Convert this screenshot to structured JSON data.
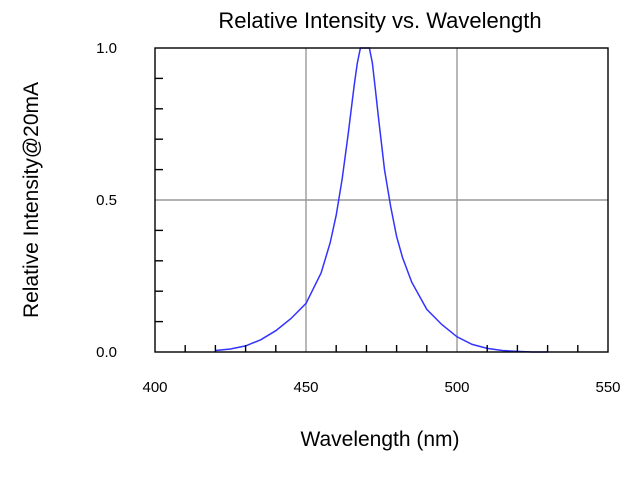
{
  "chart_data": {
    "type": "line",
    "title": "Relative Intensity vs. Wavelength",
    "xlabel": "Wavelength (nm)",
    "ylabel": "Relative Intensity@20mA",
    "xlim": [
      400,
      550
    ],
    "ylim": [
      0,
      1.0
    ],
    "x_ticks": [
      "400",
      "450",
      "500",
      "550"
    ],
    "y_ticks": [
      "0.0",
      "0.5",
      "1.0"
    ],
    "grid": true,
    "series": [
      {
        "color": "#3333ff",
        "x": [
          420,
          425,
          430,
          435,
          440,
          445,
          450,
          455,
          458,
          460,
          462,
          464,
          466,
          467,
          468,
          469,
          470,
          471,
          472,
          473,
          474,
          476,
          478,
          480,
          482,
          485,
          490,
          495,
          500,
          505,
          510,
          515,
          520,
          525,
          530
        ],
        "y": [
          0.005,
          0.01,
          0.02,
          0.04,
          0.07,
          0.11,
          0.16,
          0.26,
          0.36,
          0.45,
          0.57,
          0.72,
          0.88,
          0.95,
          1.0,
          1.0,
          1.0,
          1.0,
          0.95,
          0.86,
          0.77,
          0.6,
          0.48,
          0.38,
          0.31,
          0.23,
          0.14,
          0.09,
          0.05,
          0.025,
          0.012,
          0.005,
          0.002,
          0.0,
          0.0
        ]
      }
    ]
  }
}
